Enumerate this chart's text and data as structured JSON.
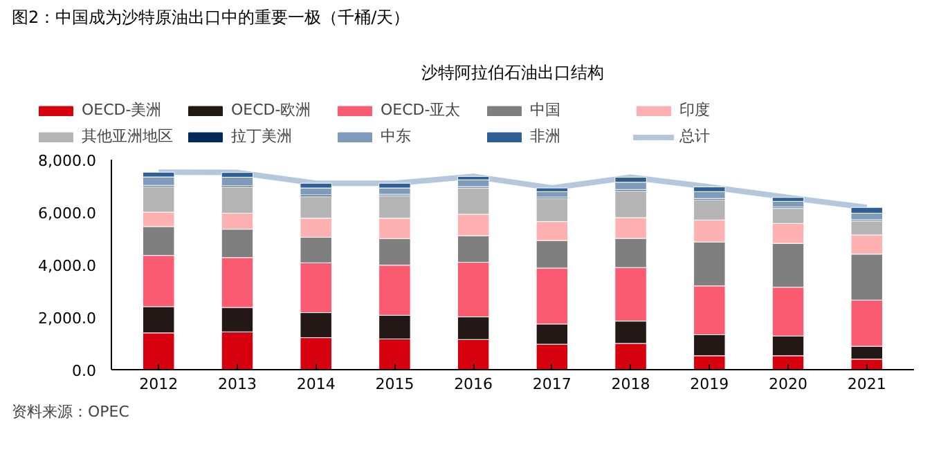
{
  "chart_data": {
    "type": "bar",
    "stacked": true,
    "title": "图2：中国成为沙特原油出口中的重要一极（千桶/天）",
    "subtitle": "沙特阿拉伯石油出口结构",
    "categories": [
      "2012",
      "2013",
      "2014",
      "2015",
      "2016",
      "2017",
      "2018",
      "2019",
      "2020",
      "2021"
    ],
    "ylim": [
      0,
      8000
    ],
    "yticks": [
      {
        "value": 0,
        "label": "0.0"
      },
      {
        "value": 2000,
        "label": "2,000.0"
      },
      {
        "value": 4000,
        "label": "4,000.0"
      },
      {
        "value": 6000,
        "label": "6,000.0"
      },
      {
        "value": 8000,
        "label": "8,000.0"
      }
    ],
    "grid": false,
    "legend": "top",
    "series": [
      {
        "name": "OECD-美洲",
        "color": "#d7000f",
        "values": [
          1400,
          1440,
          1220,
          1170,
          1150,
          970,
          1000,
          530,
          530,
          400
        ]
      },
      {
        "name": "OECD-欧洲",
        "color": "#231815",
        "values": [
          1000,
          930,
          950,
          900,
          860,
          770,
          850,
          800,
          750,
          490
        ]
      },
      {
        "name": "OECD-亚太",
        "color": "#fa5b70",
        "values": [
          1950,
          1900,
          1900,
          1910,
          2080,
          2130,
          2040,
          1860,
          1860,
          1760
        ]
      },
      {
        "name": "中国",
        "color": "#7f7f7f",
        "values": [
          1100,
          1080,
          970,
          1010,
          1010,
          1050,
          1110,
          1670,
          1670,
          1750
        ]
      },
      {
        "name": "印度",
        "color": "#ffb0b0",
        "values": [
          550,
          610,
          730,
          780,
          820,
          720,
          790,
          840,
          760,
          730
        ]
      },
      {
        "name": "其他亚洲地区",
        "color": "#b4b4b4",
        "values": [
          970,
          1000,
          820,
          860,
          1000,
          880,
          1020,
          770,
          570,
          530
        ]
      },
      {
        "name": "拉丁美洲",
        "color": "#002a5c",
        "values": [
          50,
          50,
          60,
          50,
          50,
          50,
          50,
          50,
          50,
          50
        ]
      },
      {
        "name": "中东",
        "color": "#7f9bbb",
        "values": [
          320,
          320,
          270,
          240,
          260,
          210,
          280,
          260,
          220,
          250
        ]
      },
      {
        "name": "非洲",
        "color": "#2f5f95",
        "values": [
          180,
          180,
          180,
          180,
          130,
          140,
          190,
          180,
          150,
          220
        ]
      },
      {
        "name": "总计",
        "type": "line",
        "color": "#b4c7dc",
        "values": [
          7520,
          7510,
          7100,
          7100,
          7360,
          6920,
          7330,
          6960,
          6560,
          6180
        ]
      }
    ],
    "annotations": [
      "资料来源：OPEC"
    ]
  }
}
